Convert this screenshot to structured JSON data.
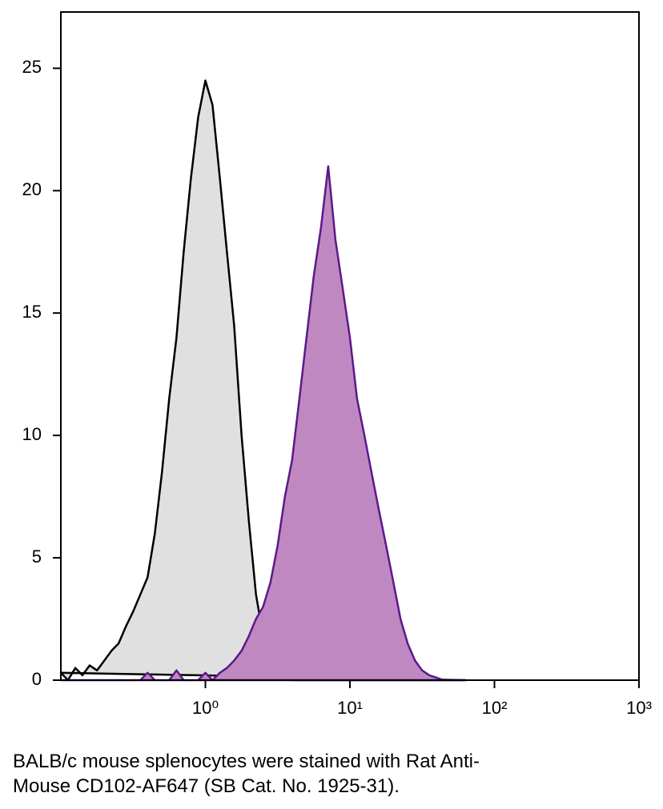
{
  "chart_data": {
    "type": "area",
    "caption": "BALB/c mouse splenocytes were stained with Rat Anti-Mouse CD102-AF647 (SB Cat. No. 1925-31).",
    "log_x": true,
    "xlim": [
      0.1,
      1000
    ],
    "xticks": [
      {
        "value": 1,
        "label": "10⁰"
      },
      {
        "value": 10,
        "label": "10¹"
      },
      {
        "value": 100,
        "label": "10²"
      },
      {
        "value": 1000,
        "label": "10³"
      }
    ],
    "ylim": [
      0,
      27.3
    ],
    "yticks": [
      0,
      5,
      10,
      15,
      20,
      25
    ],
    "x": [
      0.1,
      0.112,
      0.126,
      0.141,
      0.158,
      0.178,
      0.2,
      0.224,
      0.251,
      0.282,
      0.316,
      0.355,
      0.398,
      0.447,
      0.501,
      0.562,
      0.631,
      0.708,
      0.794,
      0.891,
      1,
      1.12,
      1.26,
      1.41,
      1.58,
      1.78,
      2,
      2.24,
      2.51,
      2.82,
      3.16,
      3.55,
      3.98,
      4.47,
      5.01,
      5.62,
      6.31,
      7.08,
      7.94,
      8.91,
      10,
      11.2,
      12.6,
      14.1,
      15.8,
      17.8,
      20,
      22.4,
      25.1,
      28.2,
      31.6,
      35.5,
      39.8,
      44.7,
      50.1,
      56.2,
      63.1
    ],
    "series": [
      {
        "color": "#000000",
        "fill": "#e0e0e0",
        "values": [
          0.3,
          0,
          0.5,
          0.2,
          0.6,
          0.4,
          0.8,
          1.2,
          1.5,
          2.2,
          2.8,
          3.5,
          4.2,
          6.0,
          8.5,
          11.5,
          14.0,
          17.5,
          20.5,
          23.0,
          24.5,
          23.5,
          20.5,
          17.5,
          14.5,
          10.0,
          6.5,
          3.5,
          1.8,
          0.8,
          0.4,
          0.2,
          0,
          0,
          0,
          0,
          0,
          0,
          0,
          0,
          0,
          0,
          0,
          0,
          0,
          0,
          0,
          0,
          0,
          0,
          0,
          0,
          0,
          0,
          0,
          0,
          0
        ]
      },
      {
        "color": "#5a1a8a",
        "fill": "#c088c0",
        "values": [
          0,
          0,
          0,
          0,
          0,
          0,
          0,
          0,
          0,
          0,
          0,
          0,
          0.3,
          0,
          0,
          0,
          0.4,
          0,
          0,
          0,
          0.3,
          0,
          0.3,
          0.5,
          0.8,
          1.2,
          1.8,
          2.5,
          3.0,
          4.0,
          5.5,
          7.5,
          9.0,
          11.5,
          14.0,
          16.5,
          18.5,
          21.0,
          18.0,
          16.0,
          14.0,
          11.5,
          10.0,
          8.5,
          7.0,
          5.5,
          4.0,
          2.5,
          1.5,
          0.8,
          0.4,
          0.2,
          0.1,
          0,
          0,
          0,
          0
        ]
      }
    ]
  }
}
